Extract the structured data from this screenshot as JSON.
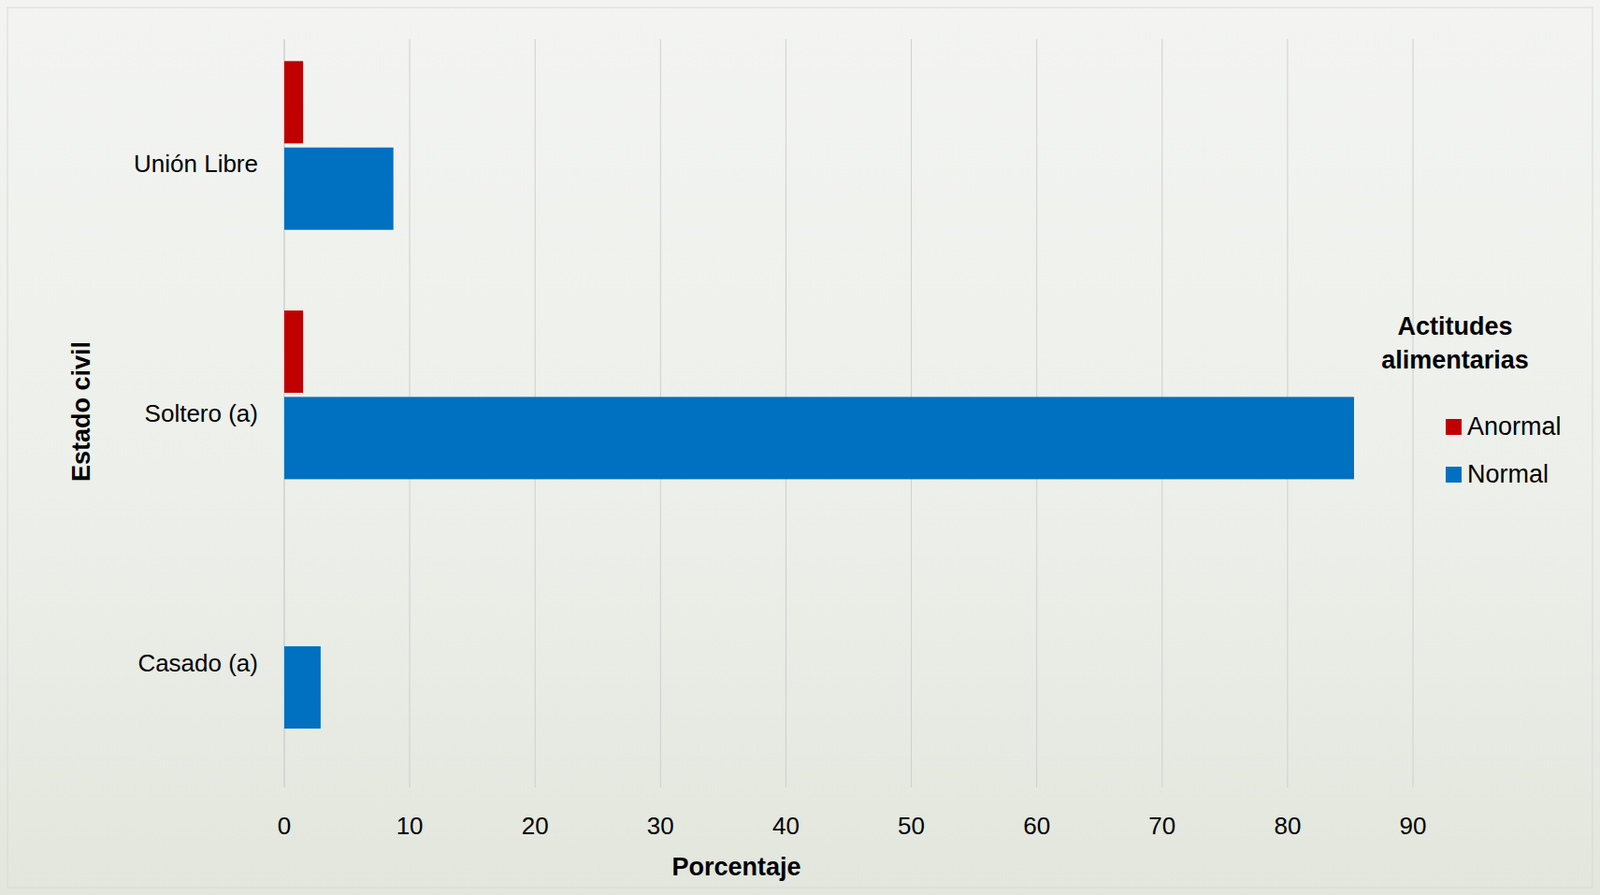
{
  "chart_data": {
    "type": "bar",
    "orientation": "horizontal",
    "x_label": "Porcentaje",
    "y_label": "Estado civil",
    "legend_title": "Actitudes alimentarias",
    "categories": [
      "Unión Libre",
      "Soltero (a)",
      "Casado (a)"
    ],
    "series": [
      {
        "name": "Anormal",
        "color": "#c00000",
        "values": [
          1.5,
          1.5,
          0
        ]
      },
      {
        "name": "Normal",
        "color": "#0070c0",
        "values": [
          8.7,
          85.3,
          2.9
        ]
      }
    ],
    "xlim": [
      0,
      90
    ],
    "xticks": [
      0,
      10,
      20,
      30,
      40,
      50,
      60,
      70,
      80,
      90
    ],
    "grid": true,
    "legend": "right"
  }
}
